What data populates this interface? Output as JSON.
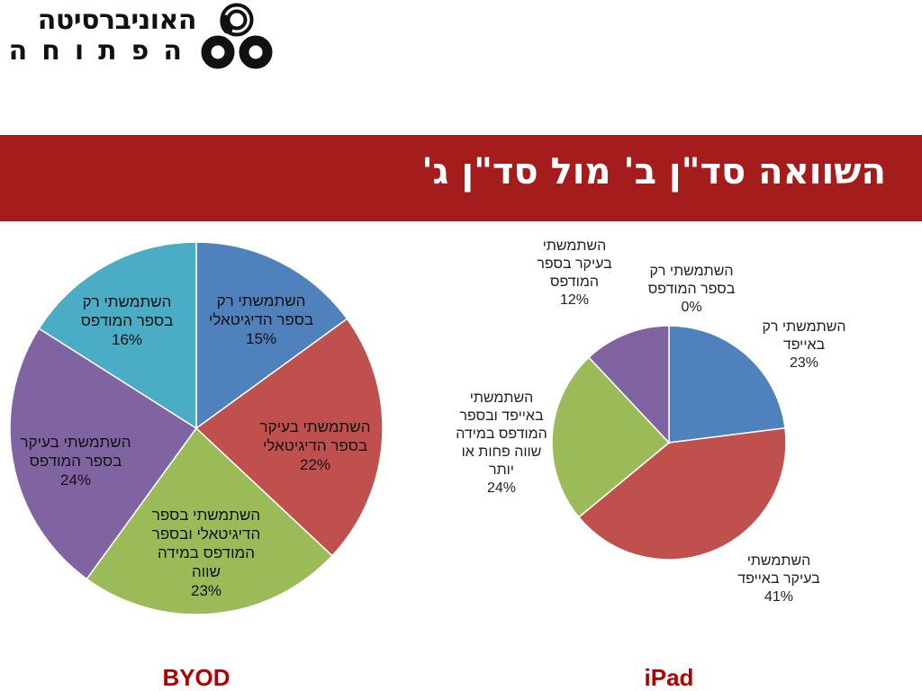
{
  "header": {
    "logo": {
      "line1": "האוניברסיטה",
      "line2": "הפתוחה"
    },
    "title": "השוואה סד\"ן ב' מול סד\"ן ג'"
  },
  "colors": {
    "banner": "#a51c1c",
    "blue": "#4f81bd",
    "red": "#c0504d",
    "green": "#9bbb59",
    "purple": "#8064a2",
    "teal": "#4bacc6",
    "caption": "#b00000"
  },
  "chart_data": [
    {
      "type": "pie",
      "title": "BYOD",
      "slices": [
        {
          "label": "השתמשתי רק בספר הדיגיטאלי",
          "lines": [
            "השתמשתי רק",
            "בספר הדיגיטאלי"
          ],
          "value": 15,
          "pct": "15%",
          "color": "#4f81bd"
        },
        {
          "label": "השתמשתי בעיקר בספר הדיגיטאלי",
          "lines": [
            "השתמשתי בעיקר",
            "בספר הדיגיטאלי"
          ],
          "value": 22,
          "pct": "22%",
          "color": "#c0504d"
        },
        {
          "label": "השתמשתי בספר הדיגיטאלי ובספר המודפס במידה שווה",
          "lines": [
            "השתמשתי בספר",
            "הדיגיטאלי ובספר",
            "המודפס במידה",
            "שווה"
          ],
          "value": 23,
          "pct": "23%",
          "color": "#9bbb59"
        },
        {
          "label": "השתמשתי בעיקר בספר המודפס",
          "lines": [
            "השתמשתי בעיקר",
            "בספר המודפס"
          ],
          "value": 24,
          "pct": "24%",
          "color": "#8064a2"
        },
        {
          "label": "השתמשתי רק בספר המודפס",
          "lines": [
            "השתמשתי רק",
            "בספר המודפס"
          ],
          "value": 16,
          "pct": "16%",
          "color": "#4bacc6"
        }
      ]
    },
    {
      "type": "pie",
      "title": "iPad",
      "slices": [
        {
          "label": "השתמשתי רק באייפד",
          "lines": [
            "השתמשתי רק",
            "באייפד"
          ],
          "value": 23,
          "pct": "23%",
          "color": "#4f81bd"
        },
        {
          "label": "השתמשתי בעיקר באייפד",
          "lines": [
            "השתמשתי",
            "בעיקר באייפד"
          ],
          "value": 41,
          "pct": "41%",
          "color": "#c0504d"
        },
        {
          "label": "השתמשתי באייפד ובספר המודפס במידה שווה פחות או יותר",
          "lines": [
            "השתמשתי",
            "באייפד ובספר",
            "המודפס במידה",
            "שווה פחות או",
            "יותר"
          ],
          "value": 24,
          "pct": "24%",
          "color": "#9bbb59"
        },
        {
          "label": "השתמשתי בעיקר בספר המודפס",
          "lines": [
            "השתמשתי",
            "בעיקר בספר",
            "המודפס"
          ],
          "value": 12,
          "pct": "12%",
          "color": "#8064a2"
        },
        {
          "label": "השתמשתי רק בספר המודפס",
          "lines": [
            "השתמשתי רק",
            "בספר המודפס"
          ],
          "value": 0,
          "pct": "0%",
          "color": "#4bacc6"
        }
      ]
    }
  ]
}
